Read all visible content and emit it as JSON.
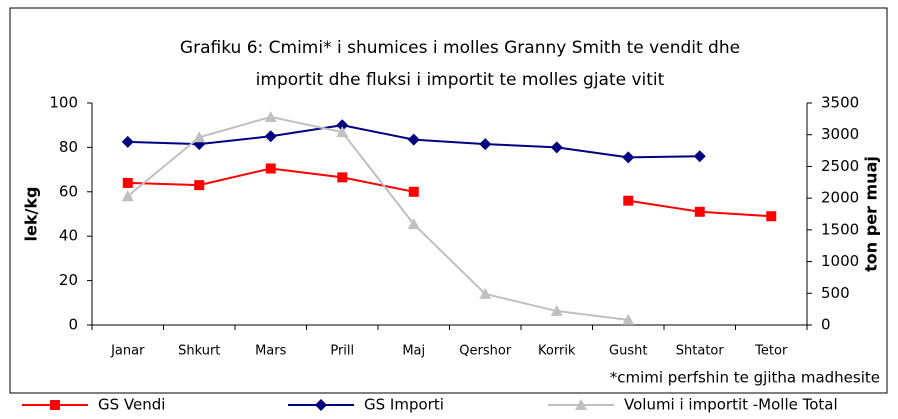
{
  "chart_data": {
    "type": "line",
    "title": [
      "Grafiku 6: Cmimi* i shumices i molles Granny Smith te vendit dhe",
      "importit dhe fluksi i importit te molles gjate vitit"
    ],
    "note": "*cmimi perfshin te gjitha madhesite",
    "y_label": "lek/kg",
    "y2_label": "ton per muaj",
    "categories": [
      "Janar",
      "Shkurt",
      "Mars",
      "Prill",
      "Maj",
      "Qershor",
      "Korrik",
      "Gusht",
      "Shtator",
      "Tetor"
    ],
    "series": [
      {
        "name": "GS Vendi",
        "color": "#ff0000",
        "marker": "square",
        "values": [
          64,
          63,
          70.5,
          66.5,
          60,
          null,
          null,
          56,
          51,
          49
        ]
      },
      {
        "name": "GS Importi",
        "color": "#000080",
        "marker": "diamond",
        "values": [
          82.5,
          81.5,
          85,
          90,
          83.5,
          81.5,
          80,
          75.5,
          76,
          null
        ]
      },
      {
        "name": "Volumi i importit -Molle Total",
        "color": "#c0c0c0",
        "marker": "triangle",
        "axis": "y2",
        "values": [
          2030,
          2960,
          3280,
          3040,
          1590,
          490,
          220,
          80,
          null,
          null
        ]
      }
    ],
    "ylim": [
      0,
      100
    ],
    "yticks": [
      0,
      20,
      40,
      60,
      80,
      100
    ],
    "y2lim": [
      0,
      3500
    ],
    "y2ticks": [
      0,
      500,
      1000,
      1500,
      2000,
      2500,
      3000,
      3500
    ],
    "legend": "bottom"
  }
}
